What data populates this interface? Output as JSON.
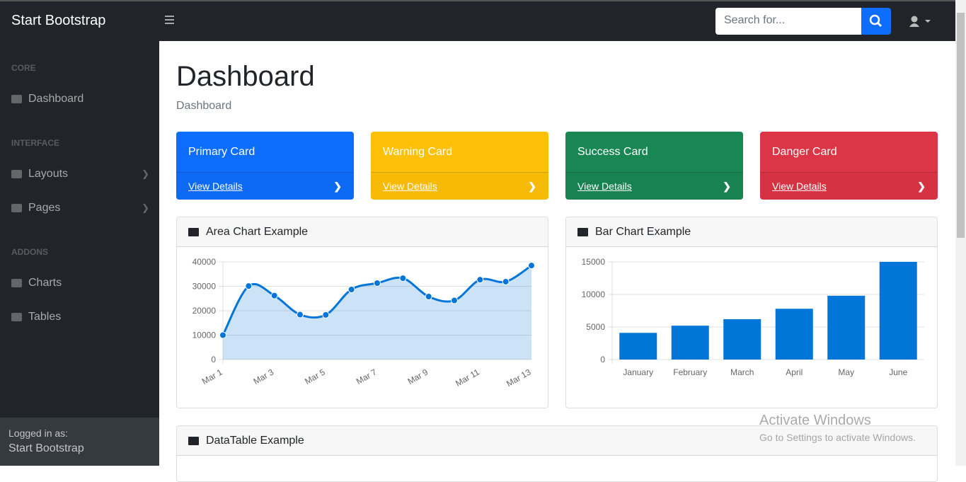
{
  "navbar": {
    "brand": "Start Bootstrap",
    "search_placeholder": "Search for..."
  },
  "sidebar": {
    "sections": [
      {
        "heading": "CORE",
        "items": [
          "Dashboard"
        ]
      },
      {
        "heading": "INTERFACE",
        "items": [
          "Layouts",
          "Pages"
        ]
      },
      {
        "heading": "ADDONS",
        "items": [
          "Charts",
          "Tables"
        ]
      }
    ],
    "footer_label": "Logged in as:",
    "footer_user": "Start Bootstrap"
  },
  "page": {
    "title": "Dashboard",
    "breadcrumb": "Dashboard"
  },
  "cards": [
    {
      "title": "Primary Card",
      "link": "View Details",
      "color": "#0d6efd"
    },
    {
      "title": "Warning Card",
      "link": "View Details",
      "color": "#ffc107"
    },
    {
      "title": "Success Card",
      "link": "View Details",
      "color": "#198754"
    },
    {
      "title": "Danger Card",
      "link": "View Details",
      "color": "#dc3545"
    }
  ],
  "area_chart": {
    "type": "line",
    "title": "Area Chart Example",
    "categories": [
      "Mar 1",
      null,
      "Mar 3",
      null,
      "Mar 5",
      null,
      "Mar 7",
      null,
      "Mar 9",
      null,
      "Mar 11",
      null,
      "Mar 13"
    ],
    "values": [
      10000,
      30100,
      26200,
      18400,
      18300,
      28700,
      31300,
      33300,
      25800,
      24200,
      32700,
      31900,
      38500
    ],
    "color": "#0275d8",
    "ylim": [
      0,
      40000
    ],
    "yticks": [
      0,
      10000,
      20000,
      30000,
      40000
    ],
    "grid": true
  },
  "bar_chart": {
    "type": "bar",
    "title": "Bar Chart Example",
    "categories": [
      "January",
      "February",
      "March",
      "April",
      "May",
      "June"
    ],
    "values": [
      4100,
      5200,
      6200,
      7800,
      9800,
      15000
    ],
    "color": "#0275d8",
    "ylim": [
      0,
      15000
    ],
    "yticks": [
      0,
      5000,
      10000,
      15000
    ],
    "grid": true
  },
  "table_card": {
    "title": "DataTable Example"
  },
  "watermark": {
    "title": "Activate Windows",
    "subtitle": "Go to Settings to activate Windows."
  }
}
